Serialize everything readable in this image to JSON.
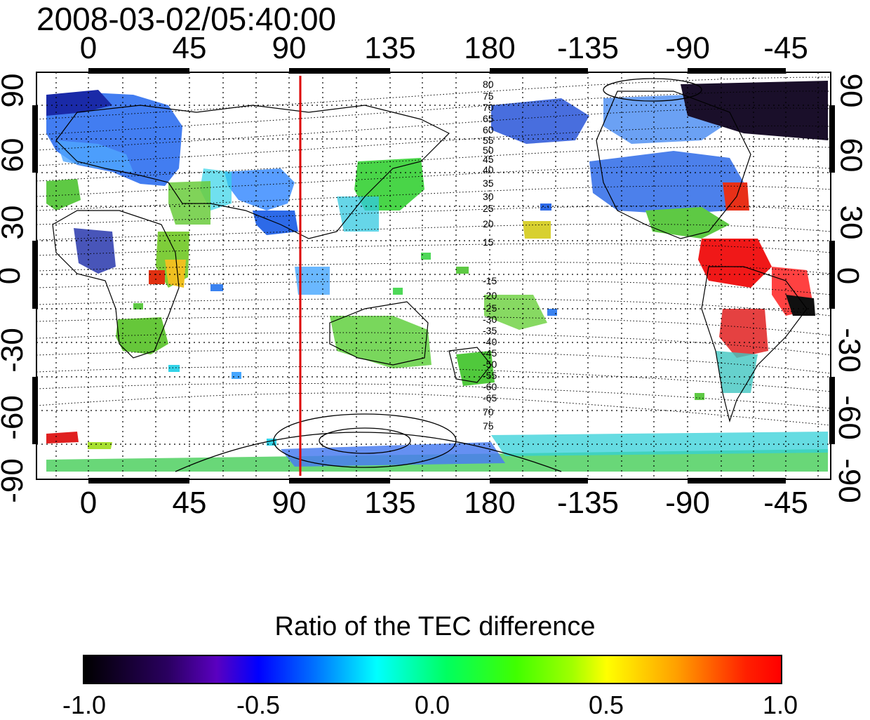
{
  "timestamp": "2008-03-02/05:40:00",
  "axes": {
    "top_ticks": [
      "0",
      "45",
      "90",
      "135",
      "180",
      "-135",
      "-90",
      "-45"
    ],
    "bottom_ticks": [
      "0",
      "45",
      "90",
      "135",
      "180",
      "-135",
      "-90",
      "-45"
    ],
    "left_ticks": [
      "90",
      "60",
      "30",
      "0",
      "-30",
      "-60",
      "-90"
    ],
    "right_ticks": [
      "90",
      "60",
      "30",
      "0",
      "-30",
      "-60",
      "-90"
    ]
  },
  "meridian_line": {
    "longitude": 95,
    "color": "#dd0000"
  },
  "contour_labels_north": [
    "80",
    "75",
    "70",
    "65",
    "60",
    "55",
    "50",
    "45",
    "40",
    "35",
    "30",
    "25",
    "20",
    "15"
  ],
  "contour_labels_south": [
    "-15",
    "-20",
    "-25",
    "-30",
    "-35",
    "-40",
    "-45",
    "-50",
    "-55",
    "-60",
    "-65",
    "70",
    "75"
  ],
  "colorbar": {
    "title": "Ratio of the TEC difference",
    "ticks": [
      "-1.0",
      "-0.5",
      "0.0",
      "0.5",
      "1.0"
    ],
    "range": [
      -1.0,
      1.0
    ]
  },
  "colors": {
    "low": "#000000",
    "mid_low": "#0000ff",
    "mid": "#00ff00",
    "high": "#ff0000"
  }
}
